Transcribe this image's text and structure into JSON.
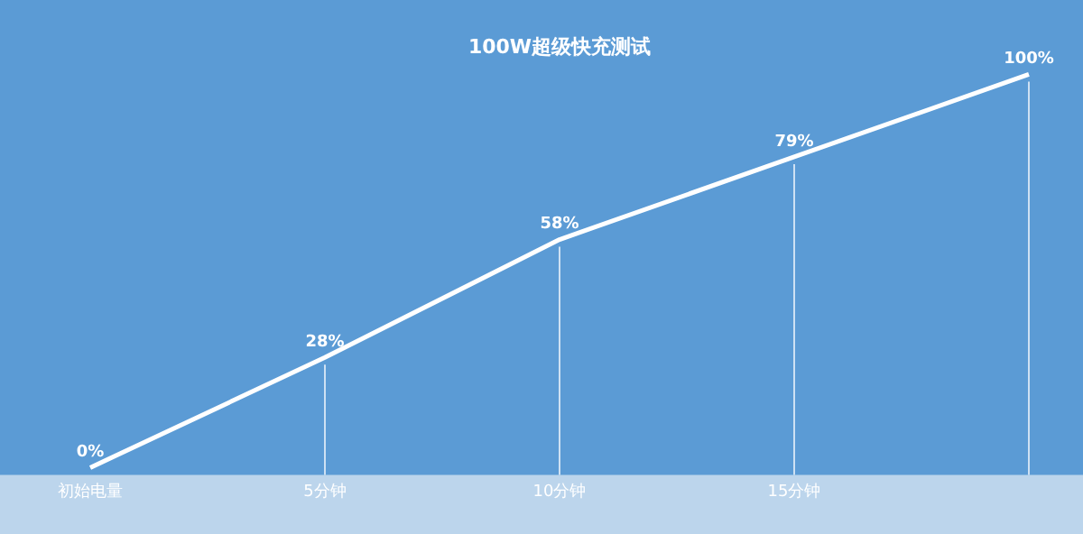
{
  "chart_data": {
    "type": "line",
    "title": "100W超级快充测试",
    "categories": [
      "初始电量",
      "5分钟",
      "10分钟",
      "15分钟",
      null
    ],
    "series": [
      {
        "color": "#ffffff",
        "values": [
          0,
          28,
          58,
          79,
          100
        ],
        "value_labels": [
          "0%",
          "28%",
          "58%",
          "79%",
          "100%"
        ]
      }
    ],
    "grid": "x",
    "legend": false,
    "marker": "none",
    "line_style": "solid",
    "tick_labels": "x"
  }
}
